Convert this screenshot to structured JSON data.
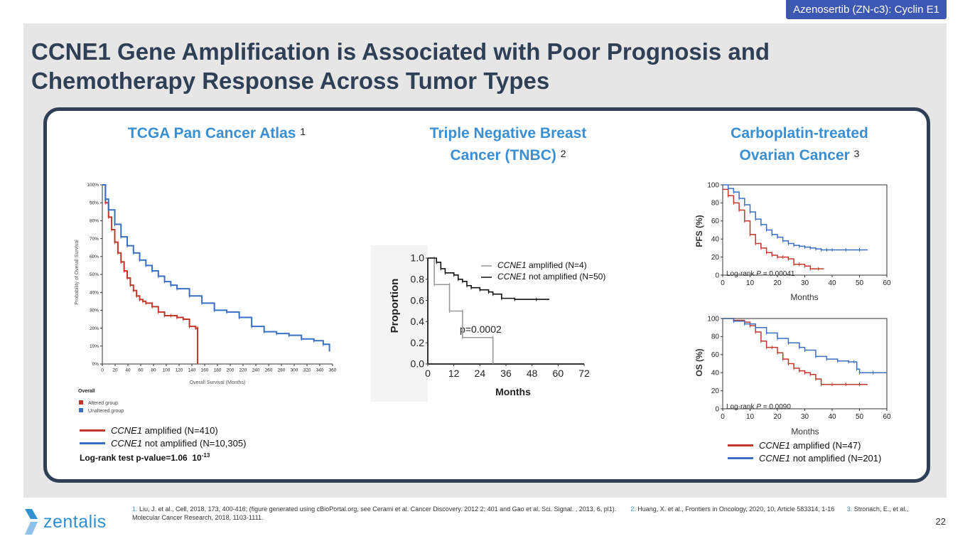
{
  "header_tag": "Azenosertib (ZN-c3): Cyclin E1",
  "title_line1": "CCNE1 Gene Amplification is Associated with Poor Prognosis and",
  "title_line2": "Chemotherapy Response Across Tumor Types",
  "panels": {
    "tcga": {
      "title": "TCGA Pan Cancer Atlas",
      "ref": "1",
      "y_axis_label": "Probability of Overall Survival",
      "x_axis_label": "Overall Survival (Months)",
      "overall_label": "Overall",
      "altered_label": "Altered group",
      "unaltered_label": "Unaltered group",
      "legend_amp_gene": "CCNE1",
      "legend_amp_rest": " amplified (N=410)",
      "legend_not_gene": "CCNE1",
      "legend_not_rest": " not amplified (N=10,305)",
      "pvalue_text": "Log-rank test p-value=1.06  10",
      "pvalue_exp": "-13"
    },
    "tnbc": {
      "title_line1": "Triple Negative Breast",
      "title_line2": "Cancer (TNBC)",
      "ref": "2",
      "y_axis_label": "Proportion",
      "x_axis_label": "Months",
      "legend_amp_gene": "CCNE1",
      "legend_amp_rest": " amplified (N=4)",
      "legend_not_gene": "CCNE1",
      "legend_not_rest": " not amplified (N=50)",
      "pvalue": "p=0.0002"
    },
    "ovarian": {
      "title_line1": "Carboplatin-treated",
      "title_line2": "Ovarian Cancer",
      "ref": "3",
      "pfs_y_label": "PFS (%)",
      "os_y_label": "OS (%)",
      "x_axis_label": "Months",
      "pfs_logrank_prefix": "Log-rank ",
      "pfs_logrank_p": "P",
      "pfs_logrank_value": " = 0.00041",
      "os_logrank_prefix": "Log-rank ",
      "os_logrank_p": "P",
      "os_logrank_value": " = 0.0090",
      "legend_amp_gene": "CCNE1",
      "legend_amp_rest": " amplified (N=47)",
      "legend_not_gene": "CCNE1",
      "legend_not_rest": " not amplified (N=201)"
    }
  },
  "footnote_1_num": "1.",
  "footnote_1": " Liu, J. et al., Cell, 2018, 173, 400-416; (figure generated using cBioPortal.org, see Cerami et al. Cancer Discovery. 2012 2; 401 and Gao et al. Sci. Signal. , 2013, 6, pl1).",
  "footnote_2_num": "2.",
  "footnote_2": " Huang, X. et al., Frontiers in Oncology, 2020, 10, Article 583314, 1-16",
  "footnote_3_num": "3.",
  "footnote_3": " Stronach, E., et al., Molecular Cancer Research, 2018, 1103-1111.",
  "logo_text": "zentalis",
  "page_number": "22",
  "colors": {
    "amplified": "#c0392b",
    "not_amplified": "#3a6fc4",
    "title": "#2f3f56",
    "accent": "#3a8fd3"
  },
  "chart_data": [
    {
      "type": "line",
      "title": "TCGA Pan Cancer Atlas",
      "xlabel": "Overall Survival (Months)",
      "ylabel": "Probability of Overall Survival",
      "xlim": [
        0,
        370
      ],
      "ylim": [
        0,
        100
      ],
      "x_ticks": [
        "0",
        "20",
        "40",
        "60",
        "80",
        "100",
        "120",
        "140",
        "160",
        "180",
        "200",
        "220",
        "240",
        "260",
        "280",
        "300",
        "320",
        "340",
        "360"
      ],
      "y_ticks": [
        "0%",
        "10%",
        "20%",
        "30%",
        "40%",
        "50%",
        "60%",
        "70%",
        "80%",
        "90%",
        "100%"
      ],
      "series": [
        {
          "name": "Altered group",
          "color": "#c0392b",
          "x": [
            0,
            5,
            10,
            15,
            20,
            25,
            30,
            35,
            40,
            45,
            50,
            55,
            60,
            65,
            70,
            80,
            90,
            100,
            110,
            120,
            130,
            140,
            150,
            153,
            153
          ],
          "y": [
            100,
            90,
            82,
            75,
            68,
            62,
            57,
            52,
            48,
            44,
            41,
            38,
            36,
            35,
            34,
            32,
            29,
            27,
            27,
            26,
            25,
            21,
            20,
            20,
            0
          ]
        },
        {
          "name": "Unaltered group",
          "color": "#3a6fc4",
          "x": [
            0,
            5,
            10,
            20,
            30,
            40,
            50,
            60,
            70,
            80,
            90,
            100,
            110,
            120,
            140,
            160,
            180,
            200,
            220,
            240,
            260,
            280,
            300,
            320,
            340,
            355,
            365
          ],
          "y": [
            100,
            92,
            86,
            78,
            71,
            66,
            62,
            58,
            55,
            52,
            49,
            46,
            44,
            42,
            38,
            34,
            30,
            29,
            26,
            21,
            18,
            17,
            16,
            14,
            13,
            11,
            7
          ]
        }
      ]
    },
    {
      "type": "line",
      "title": "Triple Negative Breast Cancer (TNBC)",
      "xlabel": "Months",
      "ylabel": "Proportion",
      "xlim": [
        0,
        72
      ],
      "ylim": [
        0,
        1.0
      ],
      "x_ticks": [
        "0",
        "12",
        "24",
        "36",
        "48",
        "60",
        "72"
      ],
      "y_ticks": [
        "0.0",
        "0.2",
        "0.4",
        "0.6",
        "0.8",
        "1.0"
      ],
      "series": [
        {
          "name": "CCNE1 amplified (N=4)",
          "color": "#999999",
          "x": [
            0,
            3,
            3,
            10,
            10,
            16,
            16,
            30,
            30
          ],
          "y": [
            1.0,
            1.0,
            0.75,
            0.75,
            0.5,
            0.5,
            0.25,
            0.25,
            0.0
          ]
        },
        {
          "name": "CCNE1 not amplified (N=50)",
          "color": "#111111",
          "x": [
            0,
            4,
            6,
            8,
            12,
            14,
            16,
            18,
            20,
            24,
            28,
            30,
            34,
            40,
            50,
            56
          ],
          "y": [
            1.0,
            0.96,
            0.9,
            0.86,
            0.84,
            0.8,
            0.78,
            0.74,
            0.72,
            0.7,
            0.68,
            0.66,
            0.62,
            0.61,
            0.61,
            0.61
          ]
        }
      ]
    },
    {
      "type": "line",
      "title": "PFS (%)",
      "xlabel": "Months",
      "ylabel": "PFS (%)",
      "xlim": [
        0,
        60
      ],
      "ylim": [
        0,
        100
      ],
      "x_ticks": [
        "0",
        "10",
        "20",
        "30",
        "40",
        "50",
        "60"
      ],
      "y_ticks": [
        "0",
        "20",
        "40",
        "60",
        "80",
        "100"
      ],
      "series": [
        {
          "name": "CCNE1 amplified (N=47)",
          "color": "#c0392b",
          "x": [
            0,
            2,
            4,
            6,
            8,
            10,
            12,
            14,
            16,
            18,
            20,
            22,
            24,
            26,
            28,
            30,
            32,
            35,
            37
          ],
          "y": [
            95,
            88,
            80,
            72,
            60,
            45,
            35,
            30,
            25,
            22,
            20,
            20,
            18,
            12,
            12,
            10,
            7,
            7,
            7
          ]
        },
        {
          "name": "CCNE1 not amplified (N=201)",
          "color": "#3a6fc4",
          "x": [
            0,
            2,
            4,
            6,
            8,
            10,
            12,
            14,
            16,
            18,
            20,
            22,
            24,
            26,
            28,
            30,
            32,
            34,
            36,
            38,
            40,
            45,
            50,
            53
          ],
          "y": [
            100,
            96,
            92,
            85,
            78,
            70,
            62,
            56,
            50,
            45,
            42,
            38,
            35,
            33,
            32,
            31,
            30,
            29,
            28,
            28,
            28,
            28,
            28,
            28
          ]
        }
      ]
    },
    {
      "type": "line",
      "title": "OS (%)",
      "xlabel": "Months",
      "ylabel": "OS (%)",
      "xlim": [
        0,
        60
      ],
      "ylim": [
        0,
        100
      ],
      "x_ticks": [
        "0",
        "10",
        "20",
        "30",
        "40",
        "50",
        "60"
      ],
      "y_ticks": [
        "0",
        "20",
        "40",
        "60",
        "80",
        "100"
      ],
      "series": [
        {
          "name": "CCNE1 amplified (N=47)",
          "color": "#c0392b",
          "x": [
            0,
            4,
            8,
            10,
            12,
            14,
            16,
            18,
            20,
            22,
            24,
            26,
            28,
            30,
            32,
            34,
            36,
            40,
            45,
            50,
            53
          ],
          "y": [
            100,
            98,
            96,
            92,
            85,
            75,
            68,
            68,
            62,
            55,
            50,
            45,
            42,
            40,
            38,
            33,
            27,
            27,
            27,
            27,
            27
          ]
        },
        {
          "name": "CCNE1 not amplified (N=201)",
          "color": "#3a6fc4",
          "x": [
            0,
            4,
            8,
            12,
            16,
            20,
            24,
            28,
            30,
            34,
            38,
            42,
            46,
            48,
            49,
            50,
            55,
            60
          ],
          "y": [
            100,
            97,
            94,
            90,
            84,
            78,
            73,
            68,
            65,
            58,
            55,
            53,
            52,
            52,
            44,
            40,
            40,
            40
          ]
        }
      ]
    }
  ]
}
